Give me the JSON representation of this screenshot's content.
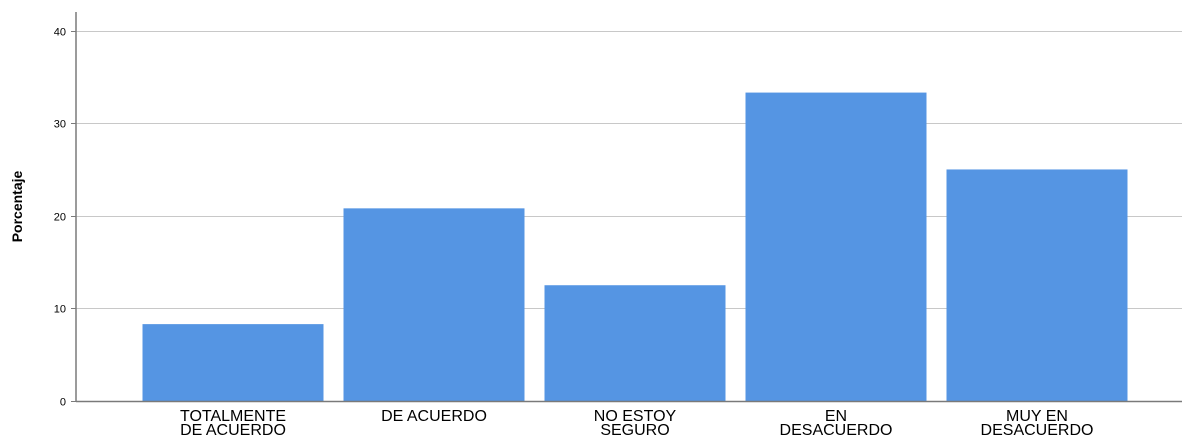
{
  "chart_data": {
    "type": "bar",
    "categories": [
      [
        "TOTALMENTE",
        "DE ACUERDO"
      ],
      [
        "DE ACUERDO"
      ],
      [
        "NO ESTOY",
        "SEGURO"
      ],
      [
        "EN",
        "DESACUERDO"
      ],
      [
        "MUY EN",
        "DESACUERDO"
      ]
    ],
    "values": [
      8.3,
      20.8,
      12.5,
      33.3,
      25.0
    ],
    "xlabel": "",
    "ylabel": "Porcentaje",
    "ylim": [
      0,
      42
    ],
    "yticks": [
      0,
      10,
      20,
      30,
      40
    ],
    "grid": true,
    "bar_color": "#5595e3",
    "grid_color": "#c8c8c8"
  }
}
